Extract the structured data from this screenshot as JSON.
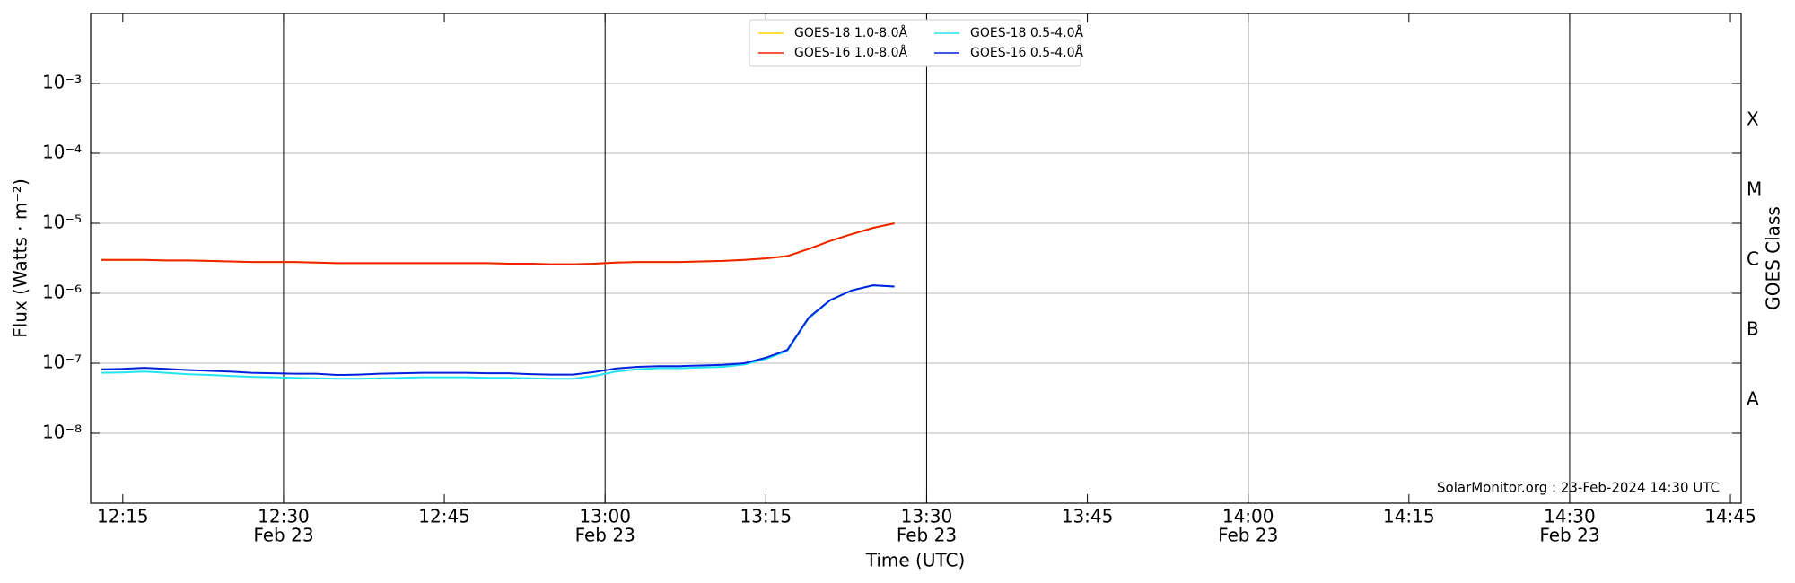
{
  "chart_data": {
    "type": "line",
    "xlabel": "Time (UTC)",
    "ylabel": "Flux (Watts · m⁻²)",
    "y2label": "GOES Class",
    "annotation": "SolarMonitor.org : 23-Feb-2024 14:30 UTC",
    "log_y": true,
    "grid": true,
    "legend": "top",
    "x": [
      "12:13",
      "12:15",
      "12:17",
      "12:19",
      "12:21",
      "12:23",
      "12:25",
      "12:27",
      "12:29",
      "12:31",
      "12:33",
      "12:35",
      "12:37",
      "12:39",
      "12:41",
      "12:43",
      "12:45",
      "12:47",
      "12:49",
      "12:51",
      "12:53",
      "12:55",
      "12:57",
      "12:59",
      "13:01",
      "13:03",
      "13:05",
      "13:07",
      "13:09",
      "13:11",
      "13:13",
      "13:15",
      "13:17",
      "13:19",
      "13:21",
      "13:23",
      "13:25",
      "13:27"
    ],
    "series": [
      {
        "name": "GOES-18 1.0-8.0Å",
        "color": "#ffd700",
        "values": [
          3e-06,
          3e-06,
          3e-06,
          2.95e-06,
          2.95e-06,
          2.9e-06,
          2.85e-06,
          2.8e-06,
          2.8e-06,
          2.8e-06,
          2.75e-06,
          2.7e-06,
          2.7e-06,
          2.7e-06,
          2.7e-06,
          2.7e-06,
          2.7e-06,
          2.7e-06,
          2.7e-06,
          2.65e-06,
          2.65e-06,
          2.6e-06,
          2.6e-06,
          2.65e-06,
          2.75e-06,
          2.8e-06,
          2.8e-06,
          2.8e-06,
          2.85e-06,
          2.9e-06,
          3e-06,
          3.15e-06,
          3.4e-06,
          4.3e-06,
          5.6e-06,
          7e-06,
          8.6e-06,
          1e-05
        ]
      },
      {
        "name": "GOES-16 1.0-8.0Å",
        "color": "#ee2200",
        "values": [
          3e-06,
          3e-06,
          3e-06,
          2.95e-06,
          2.95e-06,
          2.9e-06,
          2.85e-06,
          2.8e-06,
          2.8e-06,
          2.8e-06,
          2.75e-06,
          2.7e-06,
          2.7e-06,
          2.7e-06,
          2.7e-06,
          2.7e-06,
          2.7e-06,
          2.7e-06,
          2.7e-06,
          2.65e-06,
          2.65e-06,
          2.6e-06,
          2.6e-06,
          2.65e-06,
          2.75e-06,
          2.8e-06,
          2.8e-06,
          2.8e-06,
          2.85e-06,
          2.9e-06,
          3e-06,
          3.15e-06,
          3.4e-06,
          4.3e-06,
          5.6e-06,
          7e-06,
          8.6e-06,
          1e-05
        ]
      },
      {
        "name": "GOES-18 0.5-4.0Å",
        "color": "#22e5f0",
        "values": [
          7.3e-08,
          7.4e-08,
          7.6e-08,
          7.3e-08,
          7e-08,
          6.8e-08,
          6.6e-08,
          6.4e-08,
          6.3e-08,
          6.2e-08,
          6.1e-08,
          6e-08,
          6e-08,
          6.1e-08,
          6.2e-08,
          6.3e-08,
          6.3e-08,
          6.3e-08,
          6.2e-08,
          6.2e-08,
          6.1e-08,
          6e-08,
          6e-08,
          6.6e-08,
          7.6e-08,
          8.2e-08,
          8.5e-08,
          8.5e-08,
          8.7e-08,
          8.9e-08,
          9.6e-08,
          1.15e-07,
          1.5e-07,
          4.4e-07,
          7.9e-07,
          1.1e-06,
          1.3e-06,
          1.25e-06
        ]
      },
      {
        "name": "GOES-16 0.5-4.0Å",
        "color": "#0022dd",
        "values": [
          8.2e-08,
          8.3e-08,
          8.6e-08,
          8.3e-08,
          8e-08,
          7.8e-08,
          7.6e-08,
          7.3e-08,
          7.2e-08,
          7.1e-08,
          7.1e-08,
          6.8e-08,
          6.9e-08,
          7.1e-08,
          7.2e-08,
          7.3e-08,
          7.3e-08,
          7.3e-08,
          7.2e-08,
          7.2e-08,
          7e-08,
          6.9e-08,
          6.9e-08,
          7.5e-08,
          8.4e-08,
          8.9e-08,
          9.1e-08,
          9.1e-08,
          9.3e-08,
          9.5e-08,
          1e-07,
          1.2e-07,
          1.55e-07,
          4.5e-07,
          8e-07,
          1.1e-06,
          1.3e-06,
          1.25e-06
        ]
      }
    ],
    "xlim": [
      "12:12",
      "14:46"
    ],
    "xticks": [
      "12:15",
      "12:30",
      "12:45",
      "13:00",
      "13:15",
      "13:30",
      "13:45",
      "14:00",
      "14:15",
      "14:30",
      "14:45"
    ],
    "xtick_sublabels": [
      null,
      "Feb 23",
      null,
      "Feb 23",
      null,
      "Feb 23",
      null,
      "Feb 23",
      null,
      "Feb 23",
      null
    ],
    "ylim": [
      1e-09,
      0.01
    ],
    "yticks": [
      {
        "value": 1e-08,
        "label": "10⁻⁸"
      },
      {
        "value": 1e-07,
        "label": "10⁻⁷"
      },
      {
        "value": 1e-06,
        "label": "10⁻⁶"
      },
      {
        "value": 1e-05,
        "label": "10⁻⁵"
      },
      {
        "value": 0.0001,
        "label": "10⁻⁴"
      },
      {
        "value": 0.001,
        "label": "10⁻³"
      }
    ],
    "y2lim": [
      1e-09,
      0.01
    ],
    "y2ticks": [
      {
        "value": 3e-08,
        "label": "A"
      },
      {
        "value": 3e-07,
        "label": "B"
      },
      {
        "value": 3e-06,
        "label": "C"
      },
      {
        "value": 3e-05,
        "label": "M"
      },
      {
        "value": 0.0003,
        "label": "X"
      }
    ]
  }
}
